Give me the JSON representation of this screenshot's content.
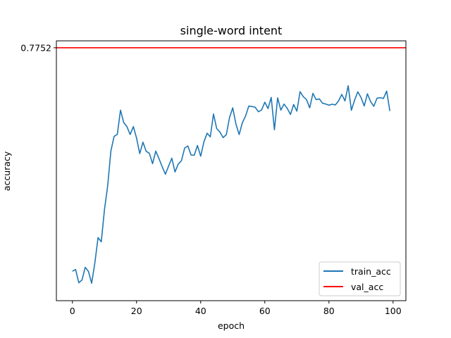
{
  "chart_data": {
    "type": "line",
    "title": "single-word intent",
    "xlabel": "epoch",
    "ylabel": "accuracy",
    "xlim": [
      -5,
      104
    ],
    "ylim": [
      0.6,
      0.78
    ],
    "x_ticks": [
      0,
      20,
      40,
      60,
      80,
      100
    ],
    "y_ticks": [
      0.7752
    ],
    "grid": false,
    "legend_position": "lower-right",
    "series": [
      {
        "name": "train_acc",
        "color": "#1f77b4",
        "x": [
          0,
          1,
          2,
          3,
          4,
          5,
          6,
          7,
          8,
          9,
          10,
          11,
          12,
          13,
          14,
          15,
          16,
          17,
          18,
          19,
          20,
          21,
          22,
          23,
          24,
          25,
          26,
          27,
          28,
          29,
          30,
          31,
          32,
          33,
          34,
          35,
          36,
          37,
          38,
          39,
          40,
          41,
          42,
          43,
          44,
          45,
          46,
          47,
          48,
          49,
          50,
          51,
          52,
          53,
          54,
          55,
          56,
          57,
          58,
          59,
          60,
          61,
          62,
          63,
          64,
          65,
          66,
          67,
          68,
          69,
          70,
          71,
          72,
          73,
          74,
          75,
          76,
          77,
          78,
          79,
          80,
          81,
          82,
          83,
          84,
          85,
          86,
          87,
          88,
          89,
          90,
          91,
          92,
          93,
          94,
          95,
          96,
          97,
          98,
          99
        ],
        "y": [
          0.6204,
          0.6216,
          0.6124,
          0.6144,
          0.6231,
          0.6203,
          0.6121,
          0.6262,
          0.6437,
          0.6408,
          0.6631,
          0.6796,
          0.7037,
          0.7138,
          0.7152,
          0.732,
          0.7234,
          0.7206,
          0.7151,
          0.7206,
          0.7127,
          0.7019,
          0.7098,
          0.7035,
          0.7021,
          0.6949,
          0.7036,
          0.6984,
          0.6928,
          0.6876,
          0.6933,
          0.6987,
          0.6892,
          0.6946,
          0.697,
          0.7057,
          0.7072,
          0.7009,
          0.7008,
          0.7075,
          0.7001,
          0.7099,
          0.716,
          0.7135,
          0.7293,
          0.7192,
          0.7168,
          0.713,
          0.715,
          0.7269,
          0.7336,
          0.7223,
          0.7151,
          0.7233,
          0.7279,
          0.7348,
          0.7345,
          0.734,
          0.7309,
          0.7321,
          0.7375,
          0.7331,
          0.7408,
          0.7184,
          0.7405,
          0.732,
          0.7362,
          0.7332,
          0.729,
          0.7359,
          0.7313,
          0.7448,
          0.7413,
          0.7393,
          0.7336,
          0.7436,
          0.7393,
          0.7398,
          0.7368,
          0.7362,
          0.7354,
          0.7361,
          0.7356,
          0.7384,
          0.7429,
          0.7384,
          0.7489,
          0.7319,
          0.7389,
          0.7447,
          0.7408,
          0.7349,
          0.7433,
          0.7379,
          0.7347,
          0.7403,
          0.7406,
          0.7401,
          0.7452,
          0.7314
        ]
      },
      {
        "name": "val_acc",
        "color": "#ff0000",
        "y_constant": 0.7752
      }
    ]
  }
}
